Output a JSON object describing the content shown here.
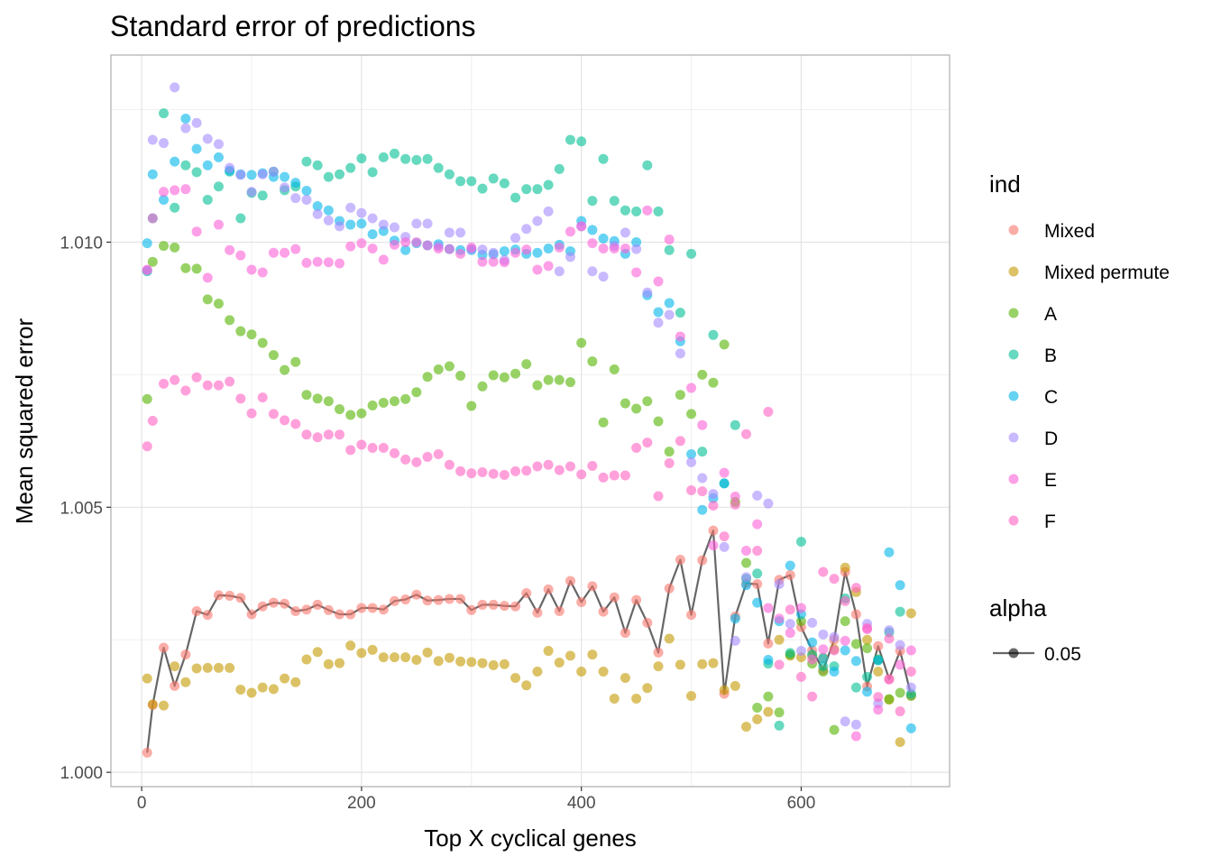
{
  "chart_data": {
    "type": "scatter",
    "title": "Standard error of predictions",
    "xlabel": "Top X cyclical genes",
    "ylabel": "Mean squared error",
    "xlim": [
      -28,
      735
    ],
    "ylim": [
      0.99973,
      1.01353
    ],
    "x_ticks": [
      0,
      200,
      400,
      600
    ],
    "x_tick_labels": [
      "0",
      "200",
      "400",
      "600"
    ],
    "y_ticks": [
      1.0,
      1.005,
      1.01
    ],
    "y_tick_labels": [
      "1.000",
      "1.005",
      "1.010"
    ],
    "grid": true,
    "legend_position": "right",
    "legend": {
      "ind_title": "ind",
      "alpha_title": "alpha",
      "alpha_label": "0.05"
    },
    "x": [
      5,
      10,
      20,
      30,
      40,
      50,
      60,
      70,
      80,
      90,
      100,
      110,
      120,
      130,
      140,
      150,
      160,
      170,
      180,
      190,
      200,
      210,
      220,
      230,
      240,
      250,
      260,
      270,
      280,
      290,
      300,
      310,
      320,
      330,
      340,
      350,
      360,
      370,
      380,
      390,
      400,
      410,
      420,
      430,
      440,
      450,
      460,
      470,
      480,
      490,
      500,
      510,
      520,
      530,
      540,
      550,
      560,
      570,
      580,
      590,
      600,
      610,
      620,
      630,
      640,
      650,
      660,
      670,
      680,
      690,
      700
    ],
    "series": [
      {
        "name": "Mixed",
        "color": "#F8766D",
        "line": true,
        "y": [
          1.00037,
          1.00127,
          1.00235,
          1.00163,
          1.00222,
          1.00304,
          1.00297,
          1.00334,
          1.00333,
          1.00329,
          1.00298,
          1.00313,
          1.0032,
          1.00318,
          1.00304,
          1.00307,
          1.00316,
          1.00306,
          1.00298,
          1.00298,
          1.0031,
          1.0031,
          1.00307,
          1.00323,
          1.00326,
          1.00335,
          1.00324,
          1.00325,
          1.00327,
          1.00327,
          1.00306,
          1.00316,
          1.00316,
          1.00314,
          1.00313,
          1.00338,
          1.00301,
          1.00345,
          1.00304,
          1.00361,
          1.00321,
          1.00351,
          1.00303,
          1.0033,
          1.00263,
          1.00325,
          1.00282,
          1.00226,
          1.00347,
          1.00401,
          1.00297,
          1.004,
          1.00456,
          1.00148,
          1.00294,
          1.00356,
          1.00355,
          1.00243,
          1.00363,
          1.00372,
          1.00274,
          1.0023,
          1.00193,
          1.0025,
          1.00378,
          1.00298,
          1.00162,
          1.00238,
          1.00176,
          1.00229,
          1.00145
        ]
      },
      {
        "name": "Mixed permute",
        "color": "#C49A00",
        "line": false,
        "y": [
          1.00177,
          1.00128,
          1.00126,
          1.002,
          1.0017,
          1.00196,
          1.00197,
          1.00197,
          1.00197,
          1.00156,
          1.0015,
          1.0016,
          1.00157,
          1.00177,
          1.0017,
          1.00213,
          1.00227,
          1.00204,
          1.00206,
          1.00239,
          1.00225,
          1.00231,
          1.00217,
          1.00217,
          1.00217,
          1.00212,
          1.00226,
          1.0021,
          1.00216,
          1.00209,
          1.00208,
          1.00206,
          1.00202,
          1.00204,
          1.00178,
          1.00164,
          1.0019,
          1.00229,
          1.00207,
          1.0022,
          1.0019,
          1.00222,
          1.0019,
          1.00139,
          1.00178,
          1.00139,
          1.00159,
          1.002,
          1.00252,
          1.00203,
          1.00144,
          1.00204,
          1.00206,
          1.00155,
          1.00163,
          1.00086,
          1.001,
          1.00114,
          1.0025,
          1.0022,
          1.00217,
          1.0022,
          1.00216,
          1.00232,
          1.00386,
          1.0034,
          1.0025,
          1.0019,
          1.00137,
          1.00057,
          1.003
        ]
      },
      {
        "name": "A",
        "color": "#53B400",
        "line": false,
        "y": [
          1.00704,
          1.00963,
          1.00993,
          1.0099,
          1.00951,
          1.0095,
          1.00892,
          1.00884,
          1.00853,
          1.00832,
          1.00826,
          1.0081,
          1.00787,
          1.00759,
          1.00774,
          1.00712,
          1.00705,
          1.007,
          1.00685,
          1.00674,
          1.00677,
          1.00692,
          1.00697,
          1.007,
          1.00704,
          1.00717,
          1.00746,
          1.0076,
          1.00766,
          1.00748,
          1.00691,
          1.00728,
          1.00749,
          1.00745,
          1.00752,
          1.0077,
          1.0073,
          1.0074,
          1.0074,
          1.00736,
          1.0081,
          1.00775,
          1.0066,
          1.0076,
          1.00696,
          1.00686,
          1.007,
          1.00662,
          1.00605,
          1.00712,
          1.00676,
          1.0075,
          1.00735,
          1.00807,
          1.0051,
          1.00395,
          1.00122,
          1.00143,
          1.00113,
          1.00222,
          1.00285,
          1.00205,
          1.0019,
          1.0008,
          1.00285,
          1.00242,
          1.00234,
          1.00213,
          1.00138,
          1.0015,
          1.00144
        ]
      },
      {
        "name": "B",
        "color": "#00C094",
        "line": false,
        "y": [
          1.00945,
          1.01045,
          1.01243,
          1.01065,
          1.01145,
          1.01132,
          1.0108,
          1.01105,
          1.01133,
          1.01045,
          1.01093,
          1.01088,
          1.01133,
          1.01098,
          1.01105,
          1.01152,
          1.01145,
          1.01123,
          1.01128,
          1.0114,
          1.01158,
          1.01132,
          1.0116,
          1.01167,
          1.01157,
          1.01155,
          1.01157,
          1.0114,
          1.01128,
          1.01115,
          1.01115,
          1.01101,
          1.0112,
          1.01111,
          1.01084,
          1.011,
          1.011,
          1.01108,
          1.01138,
          1.01193,
          1.0119,
          1.01078,
          1.01157,
          1.01078,
          1.0106,
          1.01058,
          1.01145,
          1.01058,
          1.00985,
          1.00867,
          1.00978,
          1.00605,
          1.00825,
          1.00545,
          1.00655,
          1.00365,
          1.00375,
          1.00205,
          1.00088,
          1.00225,
          1.00435,
          1.00222,
          1.002,
          1.002,
          1.00328,
          1.0016,
          1.0018,
          1.00211,
          1.00264,
          1.00303,
          1.00148
        ]
      },
      {
        "name": "C",
        "color": "#00B6EB",
        "line": false,
        "y": [
          1.00998,
          1.01128,
          1.0108,
          1.01152,
          1.01233,
          1.01176,
          1.01145,
          1.0116,
          1.01135,
          1.01128,
          1.01127,
          1.0113,
          1.01123,
          1.01123,
          1.01112,
          1.01097,
          1.01068,
          1.0106,
          1.0104,
          1.01033,
          1.01035,
          1.01015,
          1.01021,
          1.01003,
          1.00985,
          1.00998,
          1.00994,
          1.00996,
          1.00987,
          1.00985,
          1.00985,
          1.00976,
          1.00977,
          1.00983,
          1.00986,
          1.00978,
          1.0098,
          1.00988,
          1.00995,
          1.00983,
          1.0104,
          1.01023,
          1.01007,
          1.01002,
          1.00978,
          1.01,
          1.009,
          1.00868,
          1.00885,
          1.00813,
          1.006,
          1.00495,
          1.00517,
          1.00545,
          1.0029,
          1.00353,
          1.0032,
          1.00212,
          1.00285,
          1.0039,
          1.00298,
          1.00245,
          1.00215,
          1.0019,
          1.0023,
          1.0021,
          1.00152,
          1.00212,
          1.00415,
          1.00353,
          1.00083
        ]
      },
      {
        "name": "D",
        "color": "#A58AFF",
        "line": false,
        "y": [
          1.00947,
          1.01193,
          1.01187,
          1.01292,
          1.01215,
          1.01225,
          1.01195,
          1.01185,
          1.0114,
          1.01127,
          1.01095,
          1.01128,
          1.01133,
          1.01103,
          1.01083,
          1.0108,
          1.01053,
          1.01041,
          1.0103,
          1.01065,
          1.01055,
          1.01045,
          1.01033,
          1.01028,
          1.0101,
          1.01035,
          1.01035,
          1.00992,
          1.01018,
          1.01018,
          1.00987,
          1.00986,
          1.0098,
          1.00966,
          1.01008,
          1.01025,
          1.0104,
          1.01058,
          1.00945,
          1.00972,
          1.0103,
          1.00945,
          1.00935,
          1.00993,
          1.01018,
          1.00987,
          1.00905,
          1.00848,
          1.00863,
          1.0079,
          1.00585,
          1.00555,
          1.00525,
          1.00425,
          1.00248,
          1.00368,
          1.00522,
          1.00507,
          1.00355,
          1.0028,
          1.00229,
          1.00282,
          1.0026,
          1.00255,
          1.00096,
          1.0009,
          1.0028,
          1.0013,
          1.00268,
          1.0024,
          1.0016
        ]
      },
      {
        "name": "E",
        "color": "#FB61D7",
        "line": false,
        "y": [
          1.00948,
          1.01045,
          1.01095,
          1.01098,
          1.011,
          1.0102,
          1.00933,
          1.01033,
          1.00985,
          1.00975,
          1.00948,
          1.00943,
          1.0098,
          1.0098,
          1.00987,
          1.00961,
          1.00963,
          1.00962,
          1.0096,
          1.00992,
          1.00998,
          1.00988,
          1.00967,
          1.00995,
          1.01,
          1.01,
          1.00994,
          1.00988,
          1.00987,
          1.00978,
          1.0099,
          1.00963,
          1.00963,
          1.00962,
          1.0098,
          1.00986,
          1.00948,
          1.00955,
          1.0099,
          1.0102,
          1.0103,
          1.00998,
          1.00988,
          1.00988,
          1.00988,
          1.00943,
          1.0106,
          1.00926,
          1.01005,
          1.00822,
          1.00725,
          1.00655,
          1.00428,
          1.00565,
          1.0052,
          1.00418,
          1.00468,
          1.0031,
          1.0029,
          1.00263,
          1.0031,
          1.00213,
          1.00232,
          1.0023,
          1.00248,
          1.00068,
          1.0027,
          1.00118,
          1.00175,
          1.00203,
          1.0023
        ]
      },
      {
        "name": "F",
        "color": "#FF61C3",
        "line": false,
        "y": [
          1.00615,
          1.00663,
          1.00733,
          1.0074,
          1.0072,
          1.00745,
          1.0073,
          1.0073,
          1.00737,
          1.00705,
          1.00677,
          1.00707,
          1.00676,
          1.00664,
          1.00657,
          1.00637,
          1.00632,
          1.00637,
          1.00637,
          1.00608,
          1.00618,
          1.00612,
          1.00612,
          1.00602,
          1.0059,
          1.00585,
          1.00595,
          1.006,
          1.0058,
          1.00568,
          1.00564,
          1.00566,
          1.00563,
          1.00561,
          1.00568,
          1.00569,
          1.00577,
          1.0058,
          1.0057,
          1.00577,
          1.00562,
          1.00578,
          1.00556,
          1.0056,
          1.0056,
          1.00612,
          1.00622,
          1.00521,
          1.00583,
          1.00625,
          1.00532,
          1.0053,
          1.00503,
          1.00445,
          1.00505,
          1.00638,
          1.00418,
          1.0068,
          1.00203,
          1.00307,
          1.0018,
          1.00143,
          1.00378,
          1.00365,
          1.00323,
          1.00348,
          1.00272,
          1.00142,
          1.00252,
          1.00115,
          1.0019
        ]
      }
    ]
  }
}
